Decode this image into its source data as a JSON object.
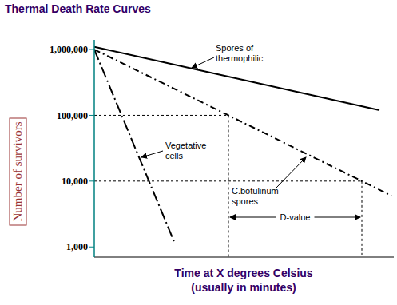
{
  "chart_data": {
    "type": "line",
    "title": "Thermal Death Rate Curves",
    "x_label": "Time at X degrees Celsius\n(usually in minutes)",
    "y_label": "Number of survivors",
    "log": "y",
    "tick_labels": "y",
    "xlim": [
      0,
      3.75
    ],
    "xticks": [
      1,
      1.68,
      2.56,
      3.35
    ],
    "ylim": [
      700,
      1400000
    ],
    "yticks": [
      {
        "value": 1000,
        "label": "1,000"
      },
      {
        "value": 10000,
        "label": "10,000"
      },
      {
        "value": 100000,
        "label": "100,000"
      },
      {
        "value": 1000000,
        "label": "1,000,000"
      }
    ],
    "series": [
      {
        "name": "Spores of\nthermophilic",
        "color": "#000000",
        "line_style": "solid",
        "x": [
          0,
          3.57
        ],
        "values": [
          1100000,
          120000
        ]
      },
      {
        "name": "C.botulinum\nspores",
        "color": "#000000",
        "line_style": "dashdot",
        "x": [
          0,
          1.68,
          3.35,
          3.72
        ],
        "values": [
          1000000,
          100000,
          10000,
          6000
        ]
      },
      {
        "name": "Vegetative\ncells",
        "color": "#000000",
        "line_style": "longdashdot",
        "x": [
          0,
          1
        ],
        "values": [
          1000000,
          1200
        ]
      }
    ],
    "d_value": {
      "label": "D-value",
      "from": 1.68,
      "to": 3.35,
      "levels": [
        100000,
        10000
      ]
    }
  }
}
